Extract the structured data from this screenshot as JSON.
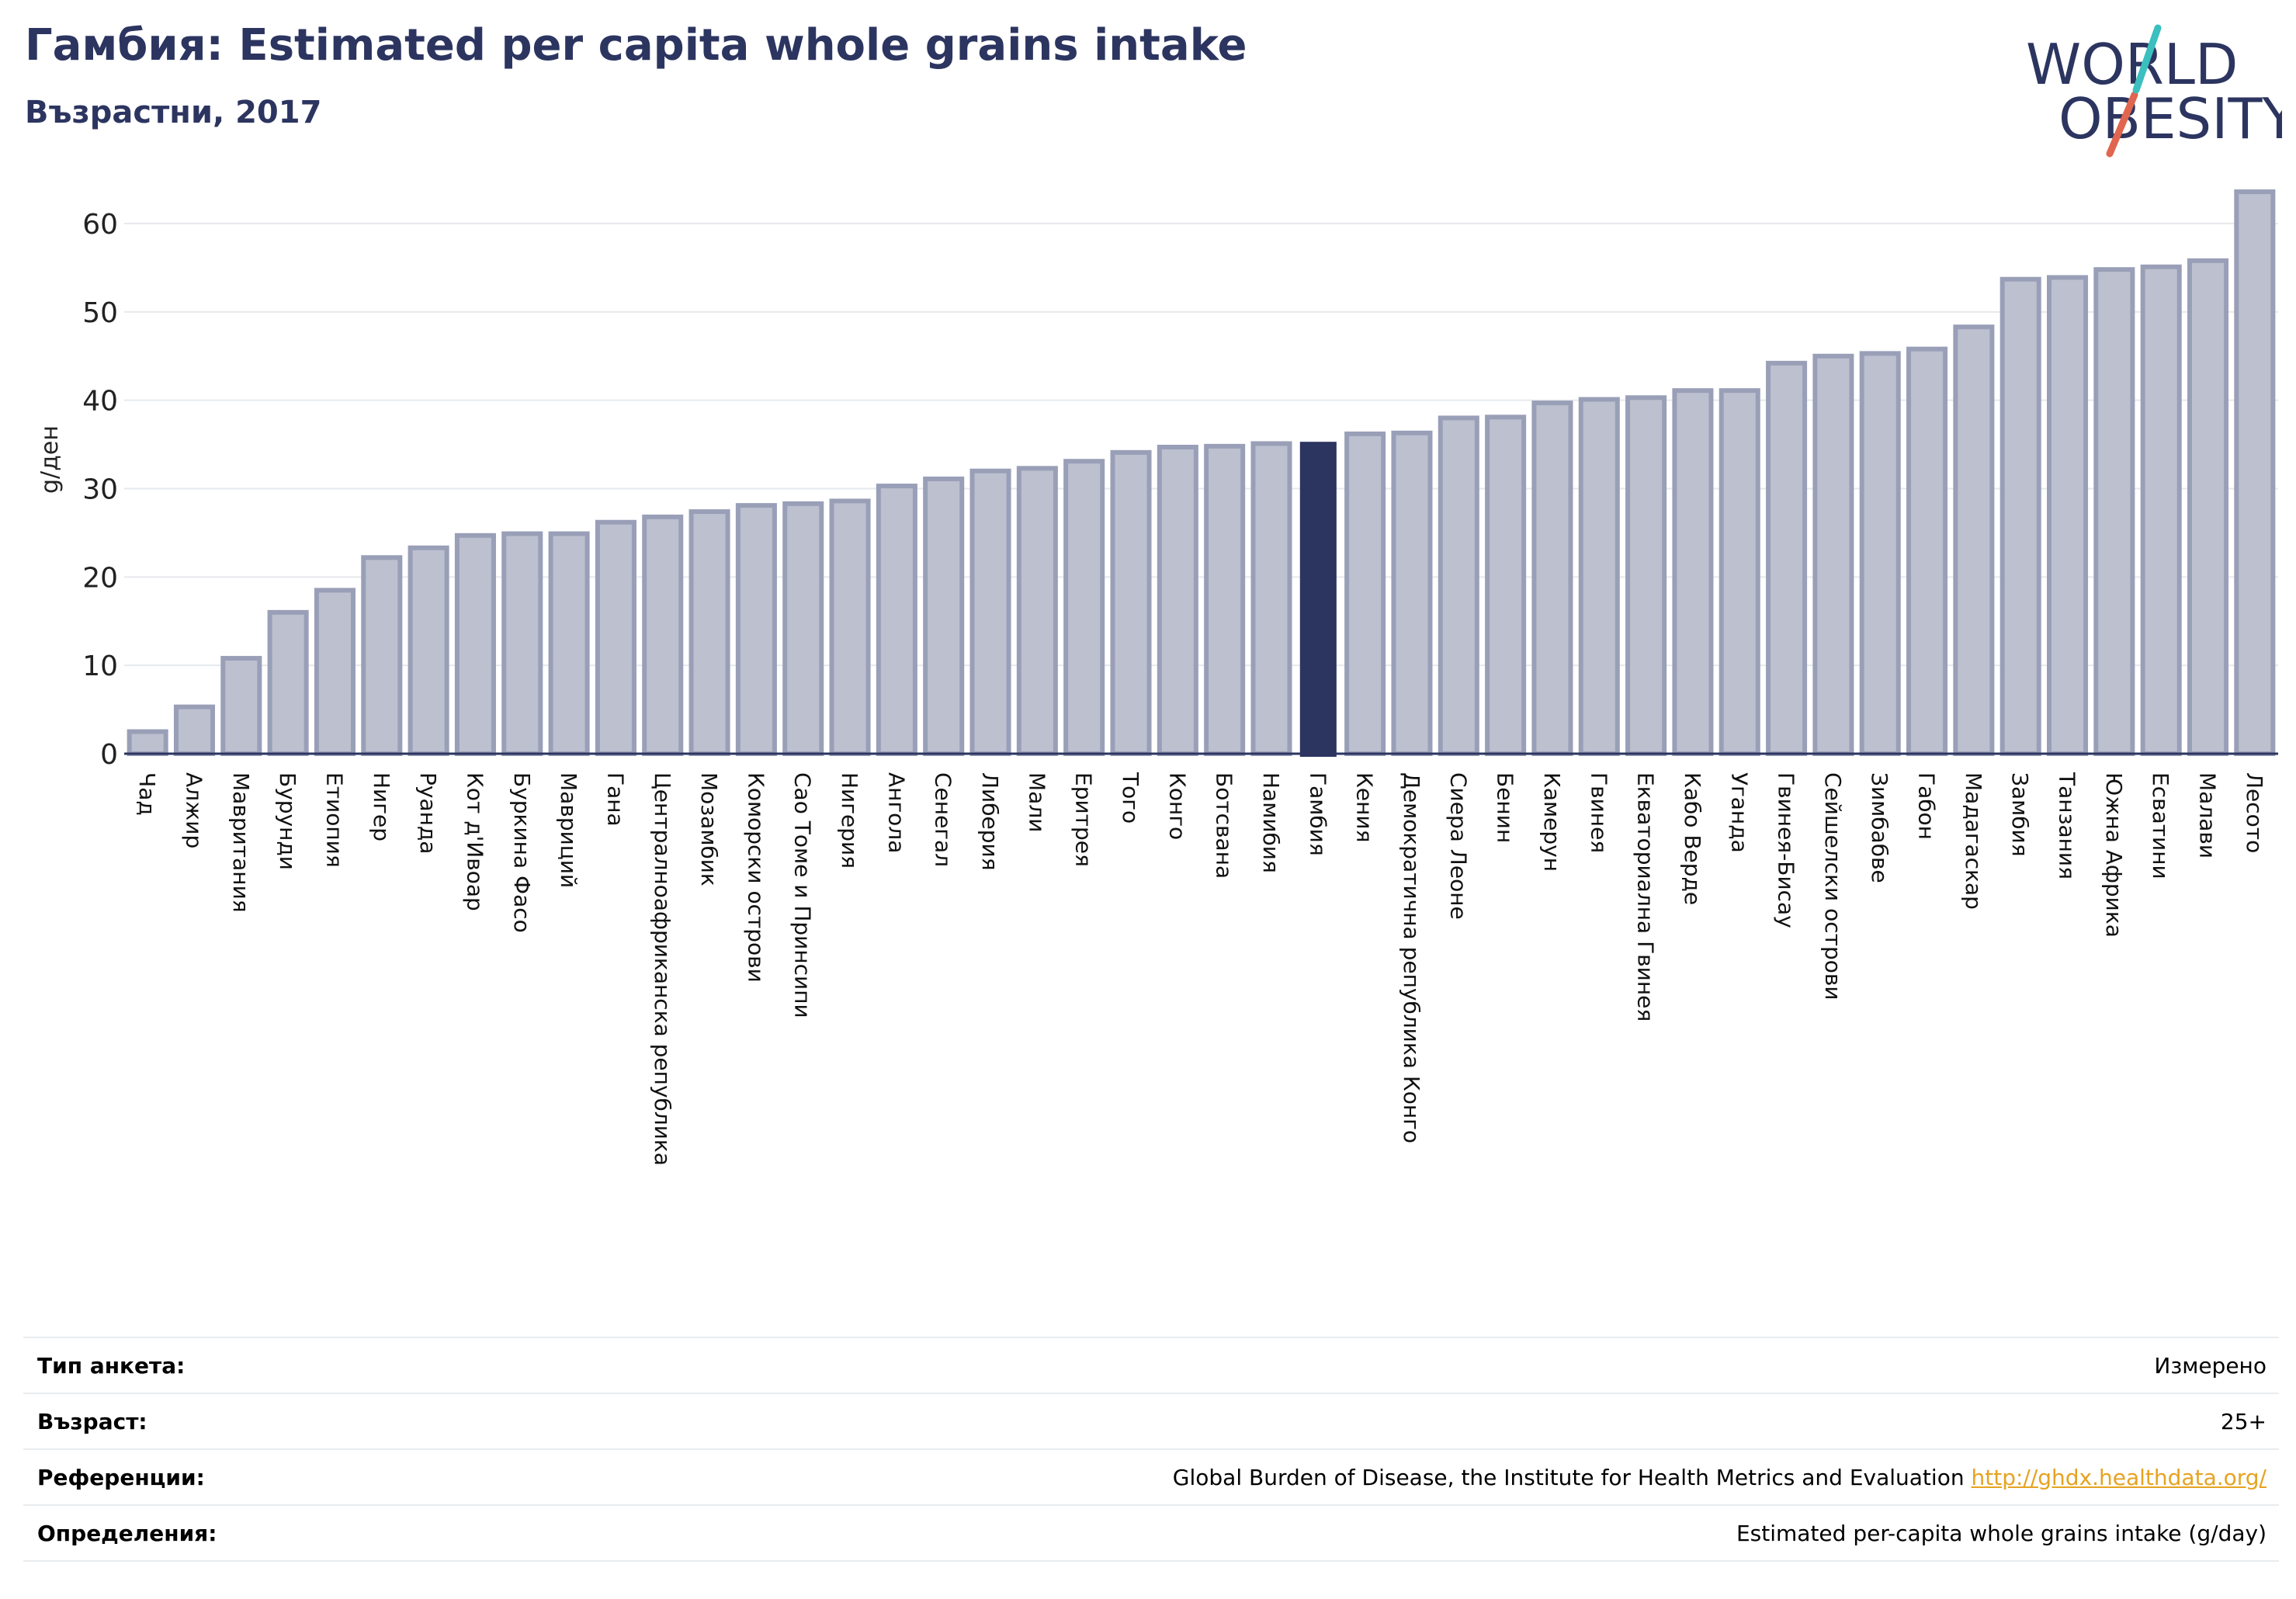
{
  "header": {
    "title": "Гамбия: Estimated per capita whole grains intake",
    "subtitle": "Възрастни, 2017"
  },
  "logo": {
    "line1": "WORLD",
    "line2": "OBESITY"
  },
  "chart_data": {
    "type": "bar",
    "ylabel": "g/ден",
    "ylim": [
      0,
      65
    ],
    "yticks": [
      0,
      10,
      20,
      30,
      40,
      50,
      60
    ],
    "grid": true,
    "highlight": "Гамбия",
    "colors": {
      "bar": "#bcc0cf",
      "bar_edge": "#9a9fb8",
      "highlight": "#2c3560",
      "grid": "#e6e9ee",
      "axis": "#2c3560"
    },
    "categories": [
      "Чад",
      "Алжир",
      "Мавритания",
      "Бурунди",
      "Етиопия",
      "Нигер",
      "Руанда",
      "Кот д'Ивоар",
      "Буркина Фасо",
      "Мавриций",
      "Гана",
      "Централноафриканска република",
      "Мозамбик",
      "Коморски острови",
      "Сао Томе и Принсипи",
      "Нигерия",
      "Ангола",
      "Сенегал",
      "Либерия",
      "Мали",
      "Еритрея",
      "Того",
      "Конго",
      "Ботсвана",
      "Намибия",
      "Гамбия",
      "Кения",
      "Демократична република Конго",
      "Сиера Леоне",
      "Бенин",
      "Камерун",
      "Гвинея",
      "Екваториална Гвинея",
      "Кабо Верде",
      "Уганда",
      "Гвинея-Бисау",
      "Сейшелски острови",
      "Зимбабве",
      "Габон",
      "Мадагаскар",
      "Замбия",
      "Танзания",
      "Южна Африка",
      "Есватини",
      "Малави",
      "Лесото"
    ],
    "values": [
      2.5,
      5.3,
      10.8,
      16.0,
      18.5,
      22.2,
      23.3,
      24.7,
      24.9,
      24.9,
      26.2,
      26.8,
      27.4,
      28.1,
      28.3,
      28.6,
      30.3,
      31.1,
      32.0,
      32.3,
      33.1,
      34.1,
      34.7,
      34.8,
      35.1,
      35.3,
      36.2,
      36.3,
      38.0,
      38.1,
      39.7,
      40.1,
      40.3,
      41.1,
      41.1,
      44.2,
      45.0,
      45.3,
      45.8,
      48.3,
      53.7,
      53.9,
      54.8,
      55.1,
      55.8,
      63.6
    ]
  },
  "info": [
    {
      "label": "Тип анкета:",
      "value": "Измерено"
    },
    {
      "label": "Възраст:",
      "value": "25+"
    },
    {
      "label": "Референции:",
      "value": "Global Burden of Disease, the Institute for Health Metrics and Evaluation",
      "link": "http://ghdx.healthdata.org/"
    },
    {
      "label": "Определения:",
      "value": "Estimated per-capita whole grains intake (g/day)"
    }
  ]
}
